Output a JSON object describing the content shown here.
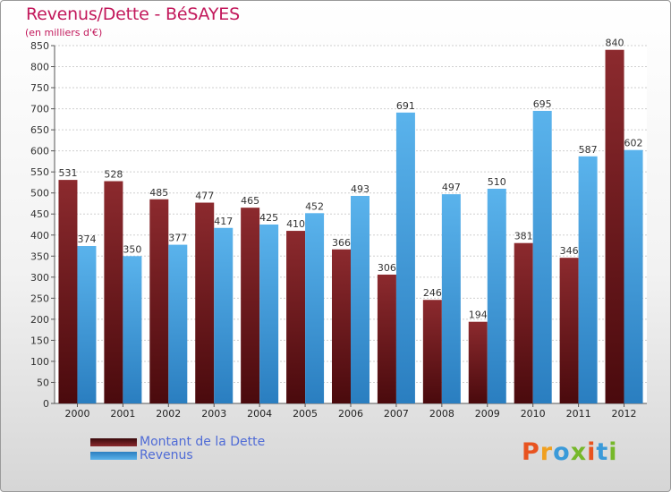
{
  "chart_data": {
    "type": "bar",
    "title": "Revenus/Dette - BéSAYES",
    "subtitle": "(en milliers d'€)",
    "categories": [
      "2000",
      "2001",
      "2002",
      "2003",
      "2004",
      "2005",
      "2006",
      "2007",
      "2008",
      "2009",
      "2010",
      "2011",
      "2012"
    ],
    "series": [
      {
        "name": "Montant de la Dette",
        "color": "#7a1f22",
        "values": [
          531,
          528,
          485,
          477,
          465,
          410,
          366,
          306,
          246,
          194,
          381,
          346,
          840
        ]
      },
      {
        "name": "Revenus",
        "color": "#4aa3e0",
        "values": [
          374,
          350,
          377,
          417,
          425,
          452,
          493,
          691,
          497,
          510,
          695,
          587,
          602
        ]
      }
    ],
    "ylim": [
      0,
      850
    ],
    "yticks": [
      0,
      50,
      100,
      150,
      200,
      250,
      300,
      350,
      400,
      450,
      500,
      550,
      600,
      650,
      700,
      750,
      800,
      850
    ],
    "grid": true,
    "legend": "bottom-left"
  },
  "logo": {
    "text": "Proxiti",
    "colors": [
      "#e8531f",
      "#f0a020",
      "#3a9ad9",
      "#76b82a",
      "#e8531f",
      "#3a9ad9",
      "#76b82a"
    ]
  }
}
